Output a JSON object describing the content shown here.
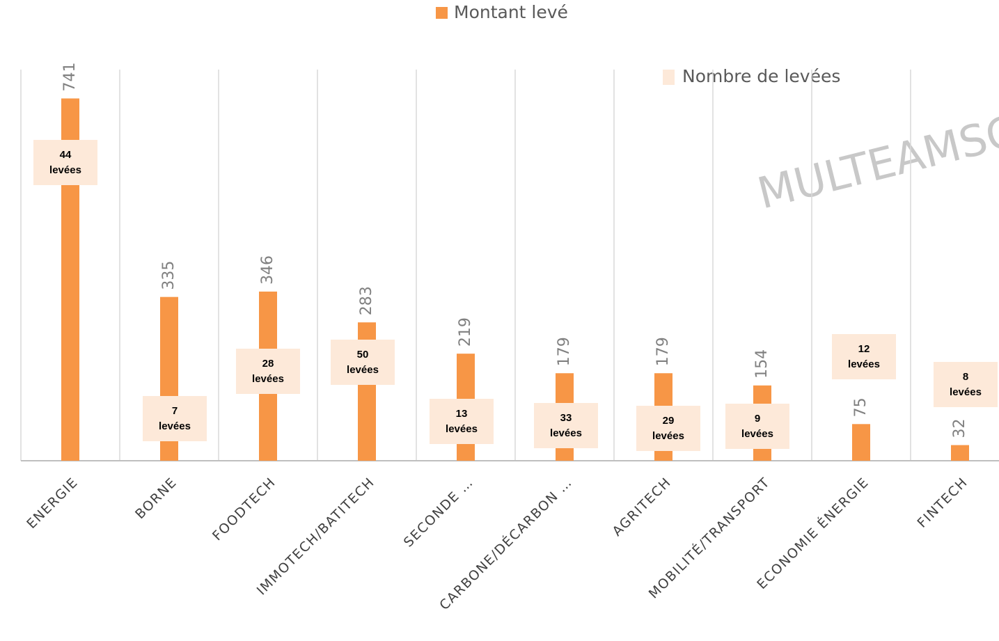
{
  "chart_data": {
    "type": "bar",
    "categories": [
      "ENERGIE",
      "BORNE",
      "FOODTECH",
      "IMMOTECH/BATITECH",
      "SECONDE …",
      "CARBONE/DÉCARBON …",
      "AGRITECH",
      "MOBILITÉ/TRANSPORT",
      "ECONOMIE ÉNERGIE",
      "FINTECH"
    ],
    "series": [
      {
        "name": "Montant levé",
        "color": "#f79646",
        "values": [
          741,
          335,
          346,
          283,
          219,
          179,
          179,
          154,
          75,
          32
        ]
      },
      {
        "name": "Nombre de levées",
        "color": "#fde9d9",
        "values": [
          44,
          7,
          28,
          50,
          13,
          33,
          29,
          9,
          12,
          8
        ],
        "value_labels": [
          "44 levées",
          "7 levées",
          "28 levées",
          "50 levées",
          "13 levées",
          "33 levées",
          "29 levées",
          "9 levées",
          "12 levées",
          "8 levées"
        ]
      }
    ],
    "ylim": [
      0,
      800
    ],
    "annotations": [
      "MULTEAMSC"
    ]
  }
}
